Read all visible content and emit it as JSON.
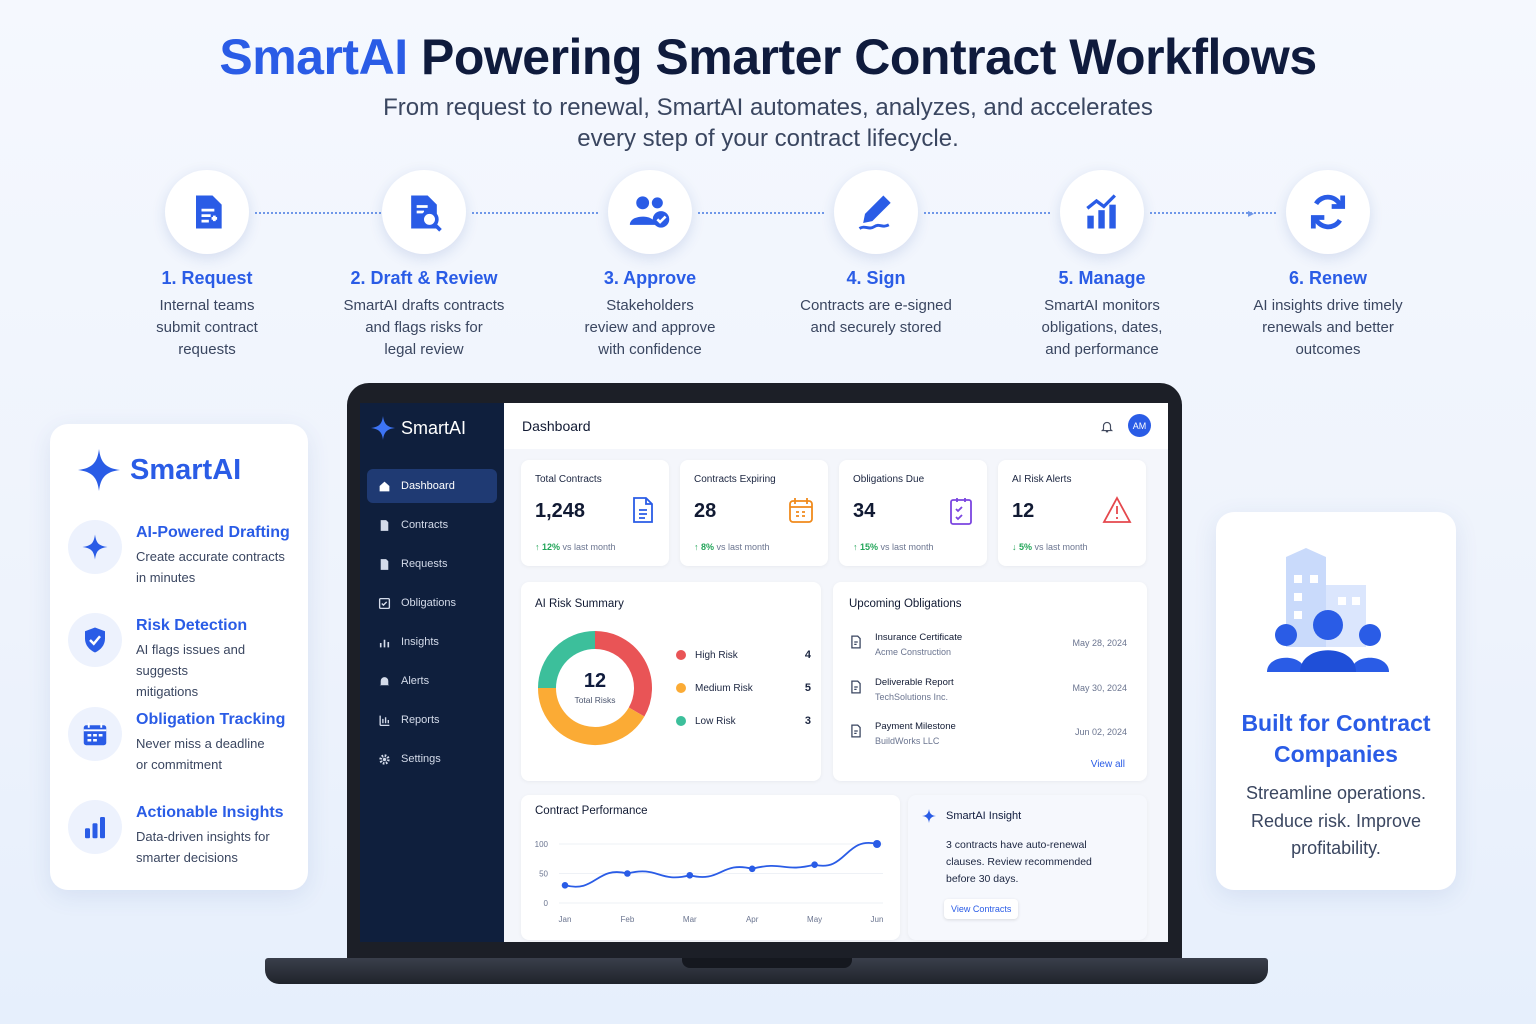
{
  "header": {
    "brand": "SmartAI",
    "title_rest": " Powering Smarter Contract Workflows",
    "subtitle_line1": "From request to renewal, SmartAI automates, analyzes, and accelerates",
    "subtitle_line2": "every step of your contract lifecycle."
  },
  "steps": [
    {
      "title": "1. Request",
      "lines": [
        "Internal teams",
        "submit contract",
        "requests"
      ],
      "icon": "document-plus-icon"
    },
    {
      "title": "2. Draft & Review",
      "lines": [
        "SmartAI drafts contracts",
        "and flags risks for",
        "legal review"
      ],
      "icon": "document-search-icon"
    },
    {
      "title": "3. Approve",
      "lines": [
        "Stakeholders",
        "review and approve",
        "with confidence"
      ],
      "icon": "users-check-icon"
    },
    {
      "title": "4. Sign",
      "lines": [
        "Contracts are e-signed",
        "and securely stored"
      ],
      "icon": "pen-signature-icon"
    },
    {
      "title": "5. Manage",
      "lines": [
        "SmartAI monitors",
        "obligations, dates,",
        "and performance"
      ],
      "icon": "bar-chart-up-icon"
    },
    {
      "title": "6. Renew",
      "lines": [
        "AI insights drive timely",
        "renewals and better",
        "outcomes"
      ],
      "icon": "refresh-icon"
    }
  ],
  "features": {
    "brand": "SmartAI",
    "items": [
      {
        "title": "AI-Powered Drafting",
        "lines": [
          "Create accurate contracts",
          "in minutes"
        ],
        "icon": "sparkle-icon"
      },
      {
        "title": "Risk Detection",
        "lines": [
          "AI flags issues and suggests",
          "mitigations"
        ],
        "icon": "shield-check-icon"
      },
      {
        "title": "Obligation Tracking",
        "lines": [
          "Never miss a deadline",
          "or commitment"
        ],
        "icon": "calendar-icon"
      },
      {
        "title": "Actionable Insights",
        "lines": [
          "Data-driven insights for",
          "smarter decisions"
        ],
        "icon": "bar-chart-icon"
      }
    ]
  },
  "promo": {
    "title_line1": "Built for Contract",
    "title_line2": "Companies",
    "lines": [
      "Streamline operations.",
      "Reduce risk. Improve",
      "profitability."
    ],
    "icon": "building-people-icon"
  },
  "app": {
    "brand": "SmartAI",
    "page_title": "Dashboard",
    "avatar": "AM",
    "nav": [
      {
        "label": "Dashboard",
        "active": true
      },
      {
        "label": "Contracts"
      },
      {
        "label": "Requests"
      },
      {
        "label": "Obligations"
      },
      {
        "label": "Insights"
      },
      {
        "label": "Alerts"
      },
      {
        "label": "Reports"
      },
      {
        "label": "Settings"
      }
    ],
    "kpis": [
      {
        "label": "Total Contracts",
        "value": "1,248",
        "delta": "↑ 12%",
        "delta_text": " vs last month",
        "color": "#2a5ce6"
      },
      {
        "label": "Contracts Expiring",
        "value": "28",
        "delta": "↑ 8%",
        "delta_text": " vs last month",
        "color": "#f08a1c"
      },
      {
        "label": "Obligations Due",
        "value": "34",
        "delta": "↑ 15%",
        "delta_text": " vs last month",
        "color": "#7b45e0"
      },
      {
        "label": "AI Risk Alerts",
        "value": "12",
        "delta": "↓ 5%",
        "delta_text": " vs last month",
        "color": "#e5484d"
      }
    ],
    "risk": {
      "title": "AI Risk Summary",
      "total": "12",
      "total_label": "Total Risks",
      "items": [
        {
          "label": "High Risk",
          "value": 4,
          "color": "#e95456"
        },
        {
          "label": "Medium Risk",
          "value": 5,
          "color": "#fbab35"
        },
        {
          "label": "Low Risk",
          "value": 3,
          "color": "#3cbf9b"
        }
      ]
    },
    "obligations": {
      "title": "Upcoming Obligations",
      "view_all": "View all",
      "items": [
        {
          "title": "Insurance Certificate",
          "party": "Acme Construction",
          "date": "May 28, 2024"
        },
        {
          "title": "Deliverable Report",
          "party": "TechSolutions Inc.",
          "date": "May 30, 2024"
        },
        {
          "title": "Payment Milestone",
          "party": "BuildWorks LLC",
          "date": "Jun 02, 2024"
        }
      ]
    },
    "insight": {
      "title": "SmartAI Insight",
      "lines": [
        "3 contracts have auto-renewal",
        "clauses. Review recommended",
        "before 30 days."
      ],
      "button": "View Contracts"
    }
  },
  "chart_data": {
    "type": "line",
    "title": "Contract Performance",
    "categories": [
      "Jan",
      "Feb",
      "Mar",
      "Apr",
      "May",
      "Jun"
    ],
    "values": [
      30,
      50,
      47,
      58,
      65,
      100
    ],
    "yticks": [
      0,
      50,
      100
    ],
    "ylim": [
      0,
      100
    ],
    "color": "#2a5ce6",
    "grid": true
  }
}
